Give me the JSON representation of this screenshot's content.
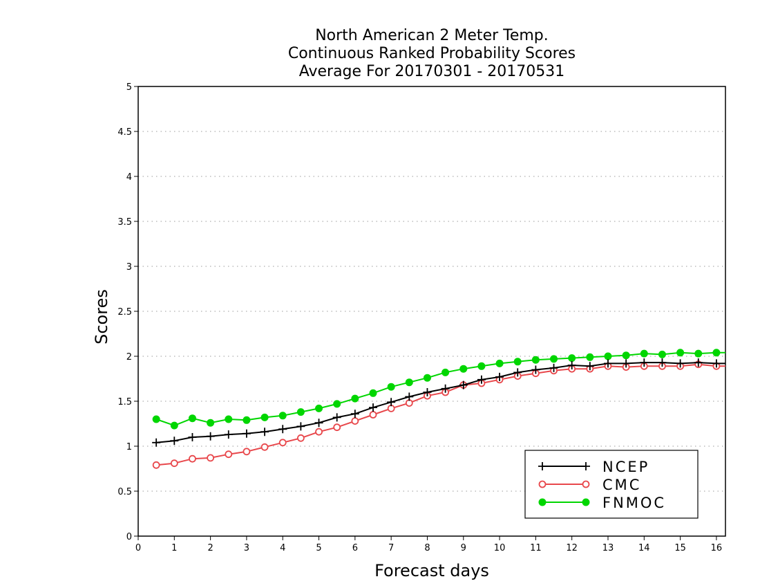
{
  "chart_data": {
    "type": "line",
    "title": [
      "North American 2 Meter Temp.",
      "Continuous Ranked Probability Scores",
      "Average For 20170301 - 20170531"
    ],
    "xlabel": "Forecast days",
    "ylabel": "Scores",
    "xlim": [
      0,
      16.25
    ],
    "ylim": [
      0,
      5
    ],
    "x_ticks": [
      0,
      1,
      2,
      3,
      4,
      5,
      6,
      7,
      8,
      9,
      10,
      11,
      12,
      13,
      14,
      15,
      16
    ],
    "y_ticks": [
      0,
      0.5,
      1,
      1.5,
      2,
      2.5,
      3,
      3.5,
      4,
      4.5,
      5
    ],
    "grid": "horizontal dotted",
    "legend_position": "bottom-right",
    "x": [
      0.5,
      1,
      1.5,
      2,
      2.5,
      3,
      3.5,
      4,
      4.5,
      5,
      5.5,
      6,
      6.5,
      7,
      7.5,
      8,
      8.5,
      9,
      9.5,
      10,
      10.5,
      11,
      11.5,
      12,
      12.5,
      13,
      13.5,
      14,
      14.5,
      15,
      15.5,
      16,
      16.25
    ],
    "series": [
      {
        "name": "NCEP",
        "color": "#000000",
        "marker": "plus",
        "values": [
          1.04,
          1.06,
          1.1,
          1.11,
          1.13,
          1.14,
          1.16,
          1.19,
          1.22,
          1.26,
          1.32,
          1.36,
          1.43,
          1.49,
          1.55,
          1.6,
          1.64,
          1.68,
          1.74,
          1.77,
          1.82,
          1.85,
          1.87,
          1.9,
          1.89,
          1.92,
          1.92,
          1.93,
          1.93,
          1.92,
          1.93,
          1.92,
          1.92
        ]
      },
      {
        "name": "CMC",
        "color": "#e8474b",
        "marker": "open-circle",
        "values": [
          0.79,
          0.81,
          0.86,
          0.87,
          0.91,
          0.94,
          0.99,
          1.04,
          1.09,
          1.16,
          1.21,
          1.28,
          1.35,
          1.42,
          1.48,
          1.56,
          1.6,
          1.68,
          1.7,
          1.74,
          1.78,
          1.81,
          1.84,
          1.86,
          1.86,
          1.89,
          1.88,
          1.89,
          1.89,
          1.89,
          1.91,
          1.89,
          1.89
        ]
      },
      {
        "name": "FNMOC",
        "color": "#00d600",
        "marker": "filled-circle",
        "values": [
          1.3,
          1.23,
          1.31,
          1.26,
          1.3,
          1.29,
          1.32,
          1.34,
          1.38,
          1.42,
          1.47,
          1.53,
          1.59,
          1.66,
          1.71,
          1.76,
          1.82,
          1.86,
          1.89,
          1.92,
          1.94,
          1.96,
          1.97,
          1.98,
          1.99,
          2.0,
          2.01,
          2.03,
          2.02,
          2.04,
          2.03,
          2.04,
          2.04
        ]
      }
    ]
  }
}
